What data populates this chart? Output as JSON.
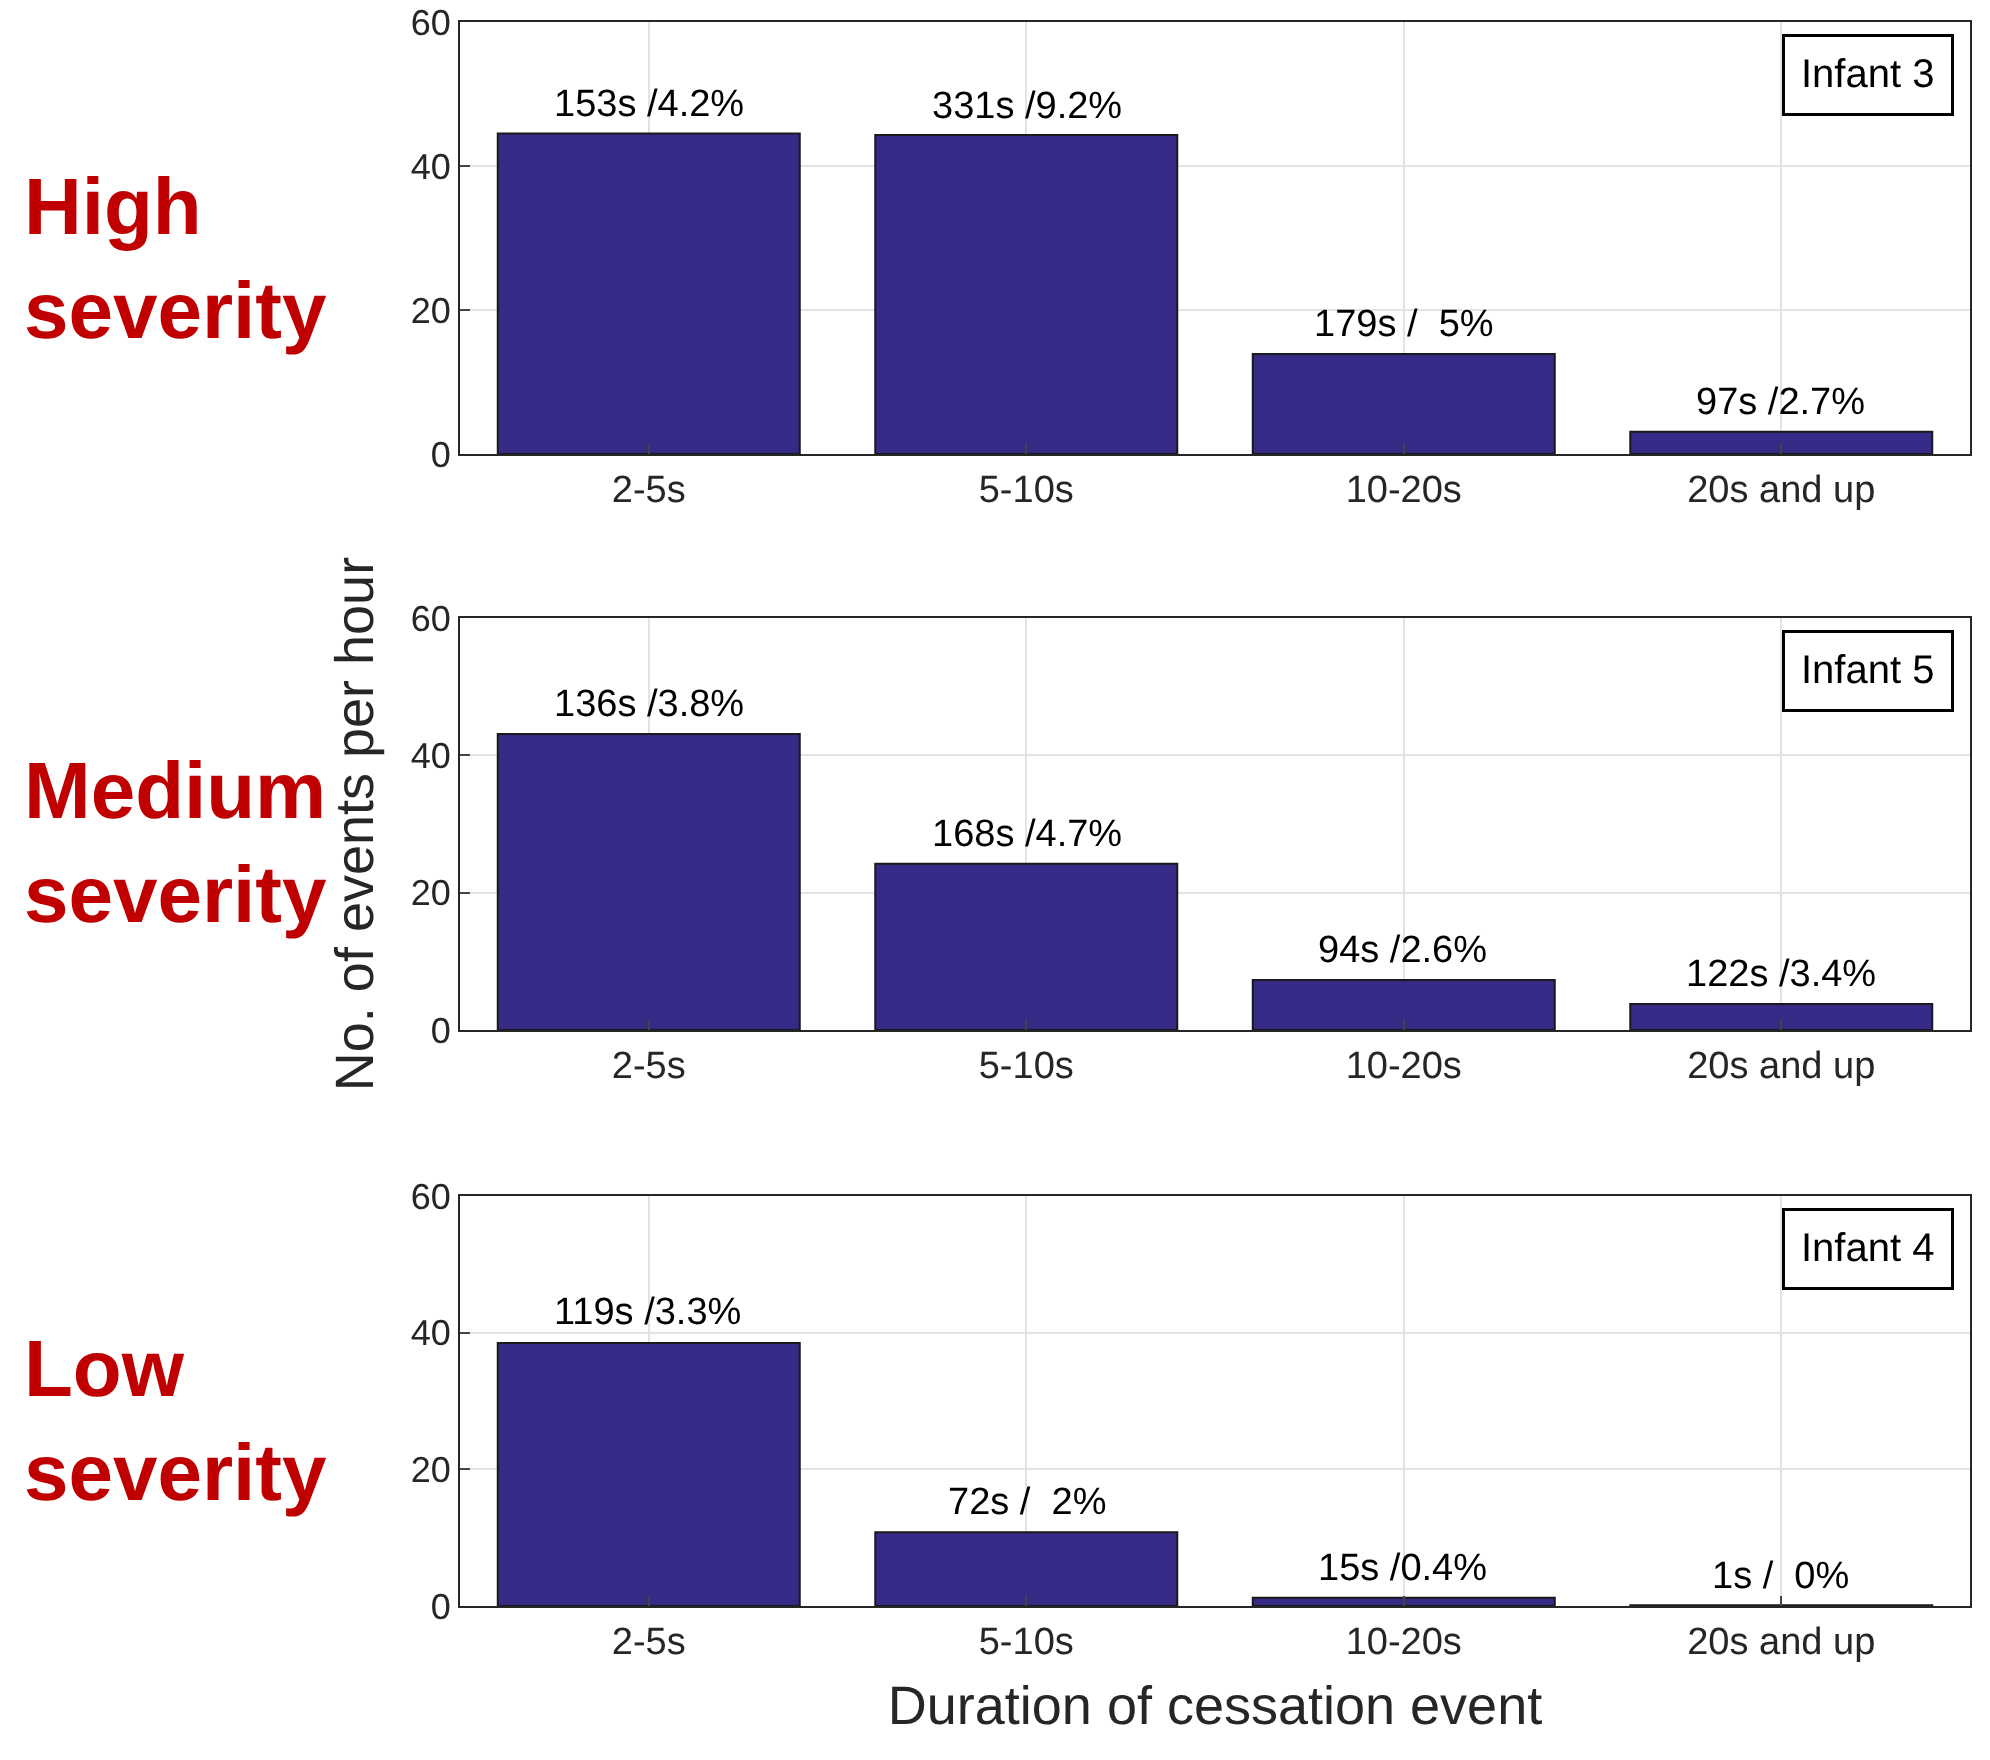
{
  "chart_data": [
    {
      "type": "bar",
      "title": "Infant 3",
      "categories": [
        "2-5s",
        "5-10s",
        "10-20s",
        "20s and up"
      ],
      "annotations": [
        "High\nseverity",
        {
          "text": "153s /4.2%",
          "x": "2-5s",
          "y": 44.5
        },
        {
          "text": "331s /9.2%",
          "x": "5-10s",
          "y": 44.3
        },
        {
          "text": "179s /  5%",
          "x": "10-20s",
          "y": 13.9
        },
        {
          "text": "97s /2.7%",
          "x": "20s and up",
          "y": 3.1
        }
      ],
      "series": [
        {
          "color": "#352a86",
          "values": [
            44.5,
            44.3,
            13.9,
            3.1
          ]
        }
      ],
      "ylim": [
        0,
        60
      ],
      "yticks": [
        0,
        20,
        40,
        60
      ],
      "grid": true
    },
    {
      "type": "bar",
      "title": "Infant 5",
      "ylabel": "No. of events per hour",
      "categories": [
        "2-5s",
        "5-10s",
        "10-20s",
        "20s and up"
      ],
      "annotations": [
        "Medium\nseverity",
        {
          "text": "136s /3.8%",
          "x": "2-5s",
          "y": 43.1
        },
        {
          "text": "168s /4.7%",
          "x": "5-10s",
          "y": 24.2
        },
        {
          "text": "94s /2.6%",
          "x": "10-20s",
          "y": 7.3
        },
        {
          "text": "122s /3.4%",
          "x": "20s and up",
          "y": 3.8
        }
      ],
      "series": [
        {
          "color": "#352a86",
          "values": [
            43.1,
            24.2,
            7.3,
            3.8
          ]
        }
      ],
      "ylim": [
        0,
        60
      ],
      "yticks": [
        0,
        20,
        40,
        60
      ],
      "grid": true
    },
    {
      "type": "bar",
      "title": "Infant 4",
      "xlabel": "Duration of cessation event",
      "categories": [
        "2-5s",
        "5-10s",
        "10-20s",
        "20s and up"
      ],
      "annotations": [
        "Low\nseverity",
        {
          "text": "119s /3.3%",
          "x": "2-5s",
          "y": 38.5
        },
        {
          "text": "72s /  2%",
          "x": "5-10s",
          "y": 10.8
        },
        {
          "text": "15s /0.4%",
          "x": "10-20s",
          "y": 1.2
        },
        {
          "text": "1s /  0%",
          "x": "20s and up",
          "y": 0.1
        }
      ],
      "series": [
        {
          "color": "#352a86",
          "values": [
            38.5,
            10.8,
            1.2,
            0.1
          ]
        }
      ],
      "ylim": [
        0,
        60
      ],
      "yticks": [
        0,
        20,
        40,
        60
      ],
      "grid": true
    }
  ]
}
